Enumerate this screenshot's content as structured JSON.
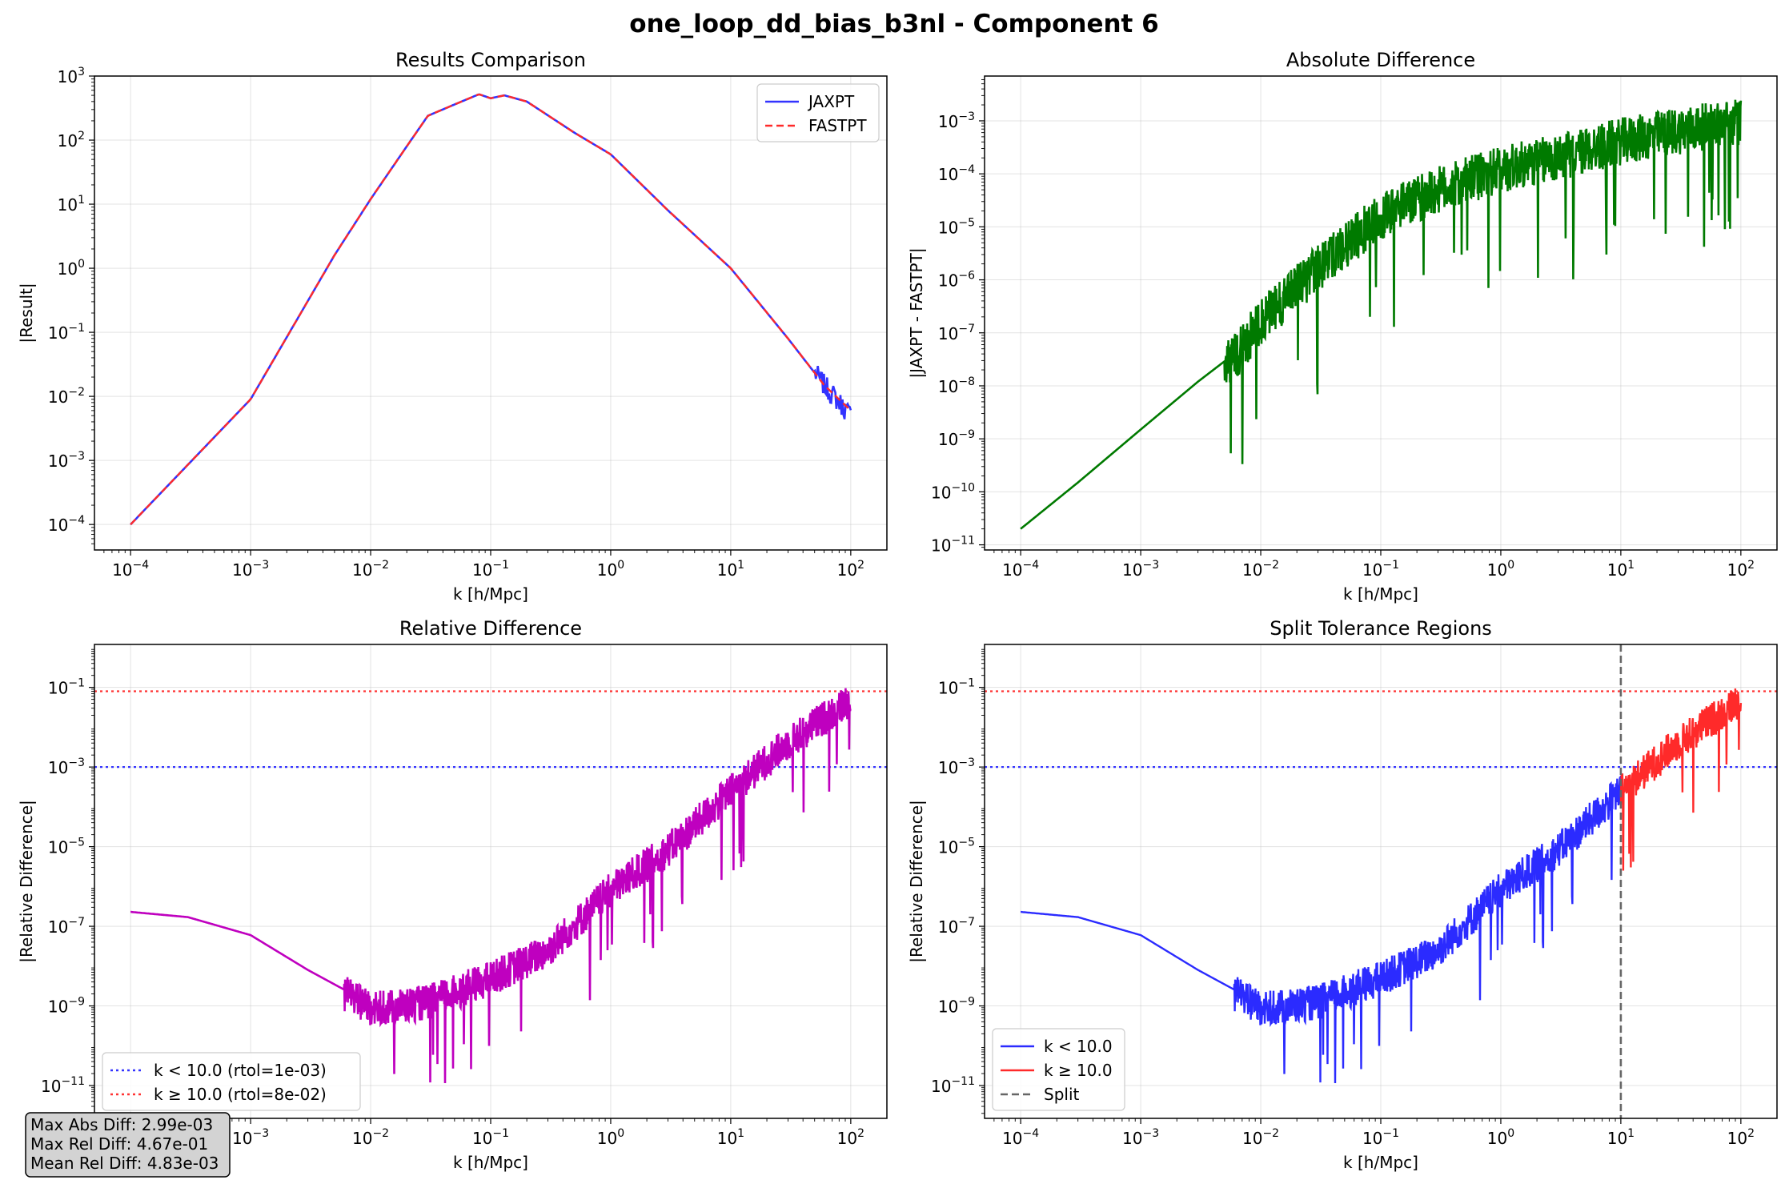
{
  "figure": {
    "title": "one_loop_dd_bias_b3nl - Component 6"
  },
  "colors": {
    "jaxpt": "#3333ff",
    "fastpt": "#ff2a2a",
    "absdiff": "#007a00",
    "reldiff": "#bf00bf",
    "low_region": "#2b2bff",
    "high_region": "#ff2a2a",
    "split": "#666666",
    "rtol_low": "#3333ff",
    "rtol_high": "#ff3333"
  },
  "stats": {
    "max_abs": "Max Abs Diff: 2.99e-03",
    "max_rel": "Max Rel Diff: 4.67e-01",
    "mean_rel": "Mean Rel Diff: 4.83e-03"
  },
  "chart_data": [
    {
      "type": "line",
      "title": "Results Comparison",
      "xlabel": "k [h/Mpc]",
      "ylabel": "|Result|",
      "xscale": "log",
      "yscale": "log",
      "xlim": [
        5e-05,
        200
      ],
      "ylim": [
        4e-05,
        1000
      ],
      "xticks": [
        -4,
        -3,
        -2,
        -1,
        0,
        1,
        2
      ],
      "yticks": [
        -4,
        -3,
        -2,
        -1,
        0,
        1,
        2,
        3
      ],
      "grid": true,
      "legend": "upper right",
      "legend_entries": [
        "JAXPT",
        "FASTPT"
      ],
      "series": [
        {
          "name": "JAXPT",
          "style": "solid",
          "x": [
            0.0001,
            0.001,
            0.005,
            0.01,
            0.02,
            0.03,
            0.05,
            0.08,
            0.1,
            0.13,
            0.2,
            0.5,
            1,
            3,
            10,
            30,
            60,
            100
          ],
          "y": [
            0.0001,
            0.009,
            1.6,
            12,
            80,
            240,
            360,
            520,
            450,
            500,
            400,
            130,
            60,
            8,
            1,
            0.08,
            0.015,
            0.005
          ]
        },
        {
          "name": "FASTPT",
          "style": "dashed",
          "x": [
            0.0001,
            0.001,
            0.005,
            0.01,
            0.02,
            0.03,
            0.05,
            0.08,
            0.1,
            0.13,
            0.2,
            0.5,
            1,
            3,
            10,
            30,
            60,
            100
          ],
          "y": [
            0.0001,
            0.009,
            1.6,
            12,
            80,
            240,
            360,
            520,
            450,
            500,
            400,
            130,
            60,
            8,
            1,
            0.08,
            0.015,
            0.006
          ]
        }
      ]
    },
    {
      "type": "line",
      "title": "Absolute Difference",
      "xlabel": "k [h/Mpc]",
      "ylabel": "|JAXPT - FASTPT|",
      "xscale": "log",
      "yscale": "log",
      "xlim": [
        5e-05,
        200
      ],
      "ylim": [
        8e-12,
        0.007
      ],
      "xticks": [
        -4,
        -3,
        -2,
        -1,
        0,
        1,
        2
      ],
      "yticks": [
        -11,
        -10,
        -9,
        -8,
        -7,
        -6,
        -5,
        -4,
        -3
      ],
      "grid": true,
      "series": [
        {
          "x": [
            0.0001,
            0.0003,
            0.001,
            0.003,
            0.006,
            0.01,
            0.03,
            0.1,
            0.3,
            1,
            3,
            10,
            30,
            100
          ],
          "y": [
            2e-11,
            1.5e-10,
            1.5e-09,
            1.2e-08,
            4e-08,
            2e-07,
            2e-06,
            2e-05,
            6e-05,
            0.00015,
            0.00025,
            0.0005,
            0.0008,
            0.0012
          ]
        }
      ]
    },
    {
      "type": "line",
      "title": "Relative Difference",
      "xlabel": "k [h/Mpc]",
      "ylabel": "|Relative Difference|",
      "xscale": "log",
      "yscale": "log",
      "xlim": [
        5e-05,
        200
      ],
      "ylim": [
        1.5e-12,
        1.2
      ],
      "xticks": [
        -4,
        -3,
        -2,
        -1,
        0,
        1,
        2
      ],
      "yticks": [
        -11,
        -9,
        -7,
        -5,
        -3,
        -1
      ],
      "grid": true,
      "legend": "lower left",
      "legend_entries": [
        "k < 10.0 (rtol=1e-03)",
        "k ≥ 10.0 (rtol=8e-02)"
      ],
      "hlines": [
        {
          "y": 0.001,
          "name": "k < 10.0 (rtol=1e-03)",
          "color": "rtol_low"
        },
        {
          "y": 0.08,
          "name": "k ≥ 10.0 (rtol=8e-02)",
          "color": "rtol_high"
        }
      ],
      "series": [
        {
          "x": [
            0.0001,
            0.0003,
            0.001,
            0.003,
            0.007,
            0.01,
            0.03,
            0.1,
            0.3,
            1,
            3,
            10,
            30,
            100
          ],
          "y": [
            2.3e-07,
            1.7e-07,
            6e-08,
            8e-09,
            2e-09,
            1e-09,
            1.5e-09,
            6e-09,
            3e-08,
            1e-06,
            1e-05,
            0.0003,
            0.005,
            0.06
          ]
        }
      ]
    },
    {
      "type": "line",
      "title": "Split Tolerance Regions",
      "xlabel": "k [h/Mpc]",
      "ylabel": "|Relative Difference|",
      "xscale": "log",
      "yscale": "log",
      "xlim": [
        5e-05,
        200
      ],
      "ylim": [
        1.5e-12,
        1.2
      ],
      "xticks": [
        -4,
        -3,
        -2,
        -1,
        0,
        1,
        2
      ],
      "yticks": [
        -11,
        -9,
        -7,
        -5,
        -3,
        -1
      ],
      "grid": true,
      "legend": "lower left",
      "legend_entries": [
        "k < 10.0",
        "k ≥ 10.0",
        "Split"
      ],
      "hlines": [
        {
          "y": 0.001,
          "color": "rtol_low"
        },
        {
          "y": 0.08,
          "color": "rtol_high"
        }
      ],
      "vline": {
        "x": 10,
        "name": "Split"
      },
      "series": [
        {
          "name": "k < 10.0",
          "x": [
            0.0001,
            0.0003,
            0.001,
            0.003,
            0.007,
            0.01,
            0.03,
            0.1,
            0.3,
            1,
            3,
            10
          ],
          "y": [
            2.3e-07,
            1.7e-07,
            6e-08,
            8e-09,
            2e-09,
            1e-09,
            1.5e-09,
            6e-09,
            3e-08,
            1e-06,
            1e-05,
            0.0003
          ]
        },
        {
          "name": "k ≥ 10.0",
          "x": [
            10,
            30,
            100
          ],
          "y": [
            0.0003,
            0.005,
            0.06
          ]
        }
      ]
    }
  ]
}
